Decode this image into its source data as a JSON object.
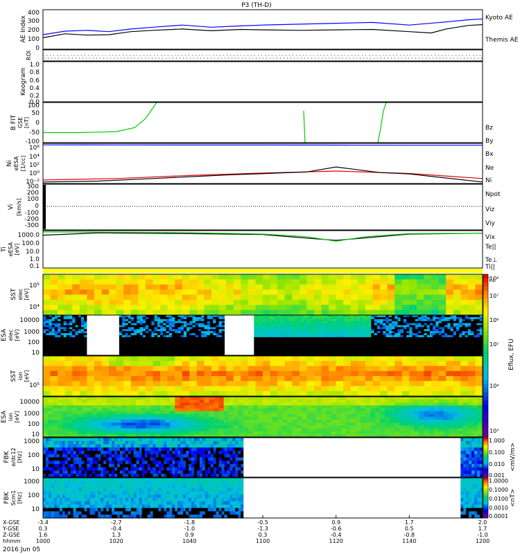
{
  "title": "P3 (TH-D)",
  "colors": {
    "blue": "#0000ff",
    "black": "#000000",
    "red": "#e00000",
    "green": "#00cc00",
    "yellow": "#ffff00"
  },
  "panels": {
    "ae": {
      "ylabel": "AE Index",
      "ticks": [
        "400",
        "300",
        "200",
        "100",
        "0"
      ],
      "legend": [
        "Kyoto AE",
        "Themis AE"
      ]
    },
    "roi": {
      "ylabel": "ROI"
    },
    "keogram": {
      "ylabel": "Keogram",
      "ticks": [
        "1.0",
        "0.8",
        "0.6",
        "0.4",
        "0.2",
        "0.0"
      ]
    },
    "bfit": {
      "ylabel_1": "B FIT",
      "ylabel_2": "GSE",
      "ylabel_3": "[nT]",
      "ticks": [
        "100",
        "50",
        "0",
        "-50",
        "-100"
      ],
      "legend": [
        "Bz",
        "By",
        "Bx"
      ]
    },
    "ni": {
      "ylabel_1": "Ni",
      "ylabel_2": "eESA",
      "ylabel_3": "[1/cc]",
      "ticks": [
        "10⁶",
        "10⁴",
        "10²",
        "10⁰",
        "10⁻²"
      ],
      "legend": [
        "Ne",
        "Ni",
        "Npot"
      ]
    },
    "vi": {
      "ylabel_1": "Vi",
      "ylabel_2": "[km/s]",
      "ticks": [
        "300",
        "200",
        "100",
        "0",
        "-100",
        "-200",
        "-300"
      ],
      "legend": [
        "Viz",
        "Viy",
        "Vix"
      ]
    },
    "ti": {
      "ylabel_1": "Ti",
      "ylabel_2": "eESA",
      "ylabel_3": "[eV]",
      "ticks": [
        "1000.0",
        "100.0",
        "10.0",
        "1.0",
        "0.1"
      ],
      "legend": [
        "Te||",
        "Te⊥",
        "Ti||",
        "Ti⊥"
      ]
    },
    "spec1": {
      "ylabel_1": "SST",
      "ylabel_2": "elec",
      "ylabel_3": "[eV]",
      "ticks": [
        "10⁵",
        "10⁴"
      ]
    },
    "spec2": {
      "ylabel_1": "ESA",
      "ylabel_2": "elec",
      "ylabel_3": "[eV]",
      "ticks": [
        "10000",
        "1000",
        "100",
        "10"
      ]
    },
    "spec3": {
      "ylabel_1": "SST",
      "ylabel_2": "ion",
      "ylabel_3": "[eV]",
      "ticks": [
        "10⁵"
      ]
    },
    "spec4": {
      "ylabel_1": "ESA",
      "ylabel_2": "ion",
      "ylabel_3": "[eV]",
      "ticks": [
        "10000",
        "1000",
        "100",
        "10"
      ]
    },
    "fbk1": {
      "ylabel_1": "FBK",
      "ylabel_2": "e/dc12",
      "ylabel_3": "[Hz]",
      "ticks": [
        "1000",
        "100",
        "10"
      ]
    },
    "fbk2": {
      "ylabel_1": "FBK",
      "ylabel_2": "Scm1",
      "ylabel_3": "[Hz]",
      "ticks": [
        "1000",
        "100",
        "10"
      ]
    }
  },
  "colorbars": {
    "eflux": {
      "label": "Eflux, EFU",
      "ticks": [
        "10⁸",
        "10⁷",
        "10⁶",
        "10⁵",
        "10⁴",
        "10³"
      ]
    },
    "fbk_e": {
      "label": "<mV/m>",
      "ticks": [
        "1.000",
        "0.100",
        "0.010",
        "0.001"
      ]
    },
    "fbk_b": {
      "label": "<nT>",
      "ticks": [
        "1.0000",
        "0.1000",
        "0.0100",
        "0.0010",
        "0.0001"
      ]
    }
  },
  "xaxis": {
    "rows": [
      {
        "label": "X-GSE",
        "values": [
          "-3.4",
          "-2.7",
          "-1.8",
          "-0.5",
          "0.9",
          "1.7",
          "2.0"
        ]
      },
      {
        "label": "Y-GSE",
        "values": [
          "0.3",
          "-0.4",
          "-1.0",
          "-1.3",
          "-0.6",
          "0.5",
          "1.7"
        ]
      },
      {
        "label": "Z-GSE",
        "values": [
          "1.6",
          "1.3",
          "0.9",
          "0.3",
          "-0.4",
          "-0.8",
          "-1.0"
        ]
      },
      {
        "label": "hhmm",
        "values": [
          "1000",
          "1020",
          "1040",
          "1100",
          "1120",
          "1140",
          "1200"
        ]
      }
    ],
    "date": "2016 Jun 05"
  },
  "chart_data": {
    "type": "line",
    "title": "P3 (TH-D)",
    "x_time_range": [
      "1000",
      "1200"
    ],
    "series": [
      {
        "name": "Kyoto AE",
        "panel": "AE Index",
        "times_min": [
          0,
          6,
          12,
          18,
          24,
          30,
          38,
          46,
          54,
          60,
          70,
          80,
          90,
          100,
          110,
          116,
          120
        ],
        "values": [
          165,
          205,
          215,
          200,
          230,
          250,
          275,
          250,
          265,
          275,
          285,
          295,
          305,
          275,
          310,
          335,
          345
        ]
      },
      {
        "name": "Themis AE",
        "panel": "AE Index",
        "times_min": [
          0,
          6,
          12,
          18,
          24,
          30,
          38,
          46,
          54,
          60,
          70,
          80,
          90,
          100,
          106,
          110,
          116,
          120
        ],
        "values": [
          130,
          175,
          160,
          165,
          200,
          215,
          230,
          210,
          225,
          220,
          215,
          220,
          225,
          200,
          185,
          230,
          270,
          280
        ]
      },
      {
        "name": "Ne",
        "panel": "Ni",
        "times_min": [
          0,
          20,
          40,
          60,
          80,
          100,
          120
        ],
        "values": [
          500000,
          480000,
          470000,
          460000,
          450000,
          430000,
          420000
        ]
      },
      {
        "name": "Ni",
        "panel": "Ni",
        "times_min": [
          0,
          15,
          30,
          50,
          72,
          80,
          92,
          100,
          120
        ],
        "values": [
          0.02,
          0.03,
          0.1,
          0.5,
          2,
          20,
          1.5,
          0.8,
          0.02
        ]
      },
      {
        "name": "Npot",
        "panel": "Ni",
        "times_min": [
          0,
          20,
          40,
          60,
          80,
          100,
          120
        ],
        "values": [
          0.05,
          0.1,
          0.4,
          1.2,
          3,
          1,
          0.1
        ]
      },
      {
        "name": "Bz (green)",
        "panel": "B FIT",
        "times_min": [
          0,
          10,
          20,
          25,
          28,
          31
        ],
        "values": [
          -50,
          -50,
          -45,
          -25,
          20,
          100
        ]
      },
      {
        "name": "Ti||",
        "panel": "Ti",
        "times_min": [
          0,
          20,
          40,
          60,
          72,
          80,
          88,
          100,
          120
        ],
        "values": [
          1400,
          1300,
          1200,
          800,
          400,
          120,
          400,
          900,
          1000
        ]
      },
      {
        "name": "Te||",
        "panel": "Ti",
        "times_min": [
          0,
          15,
          40,
          60,
          80,
          100,
          120
        ],
        "values": [
          600,
          1100,
          900,
          700,
          150,
          800,
          1000
        ]
      }
    ],
    "ylim": {
      "AE Index": [
        0,
        450
      ],
      "B FIT": [
        -100,
        100
      ],
      "Ni": [
        0.01,
        1000000
      ],
      "Vi": [
        -350,
        350
      ],
      "Ti": [
        0.1,
        2000
      ]
    }
  }
}
